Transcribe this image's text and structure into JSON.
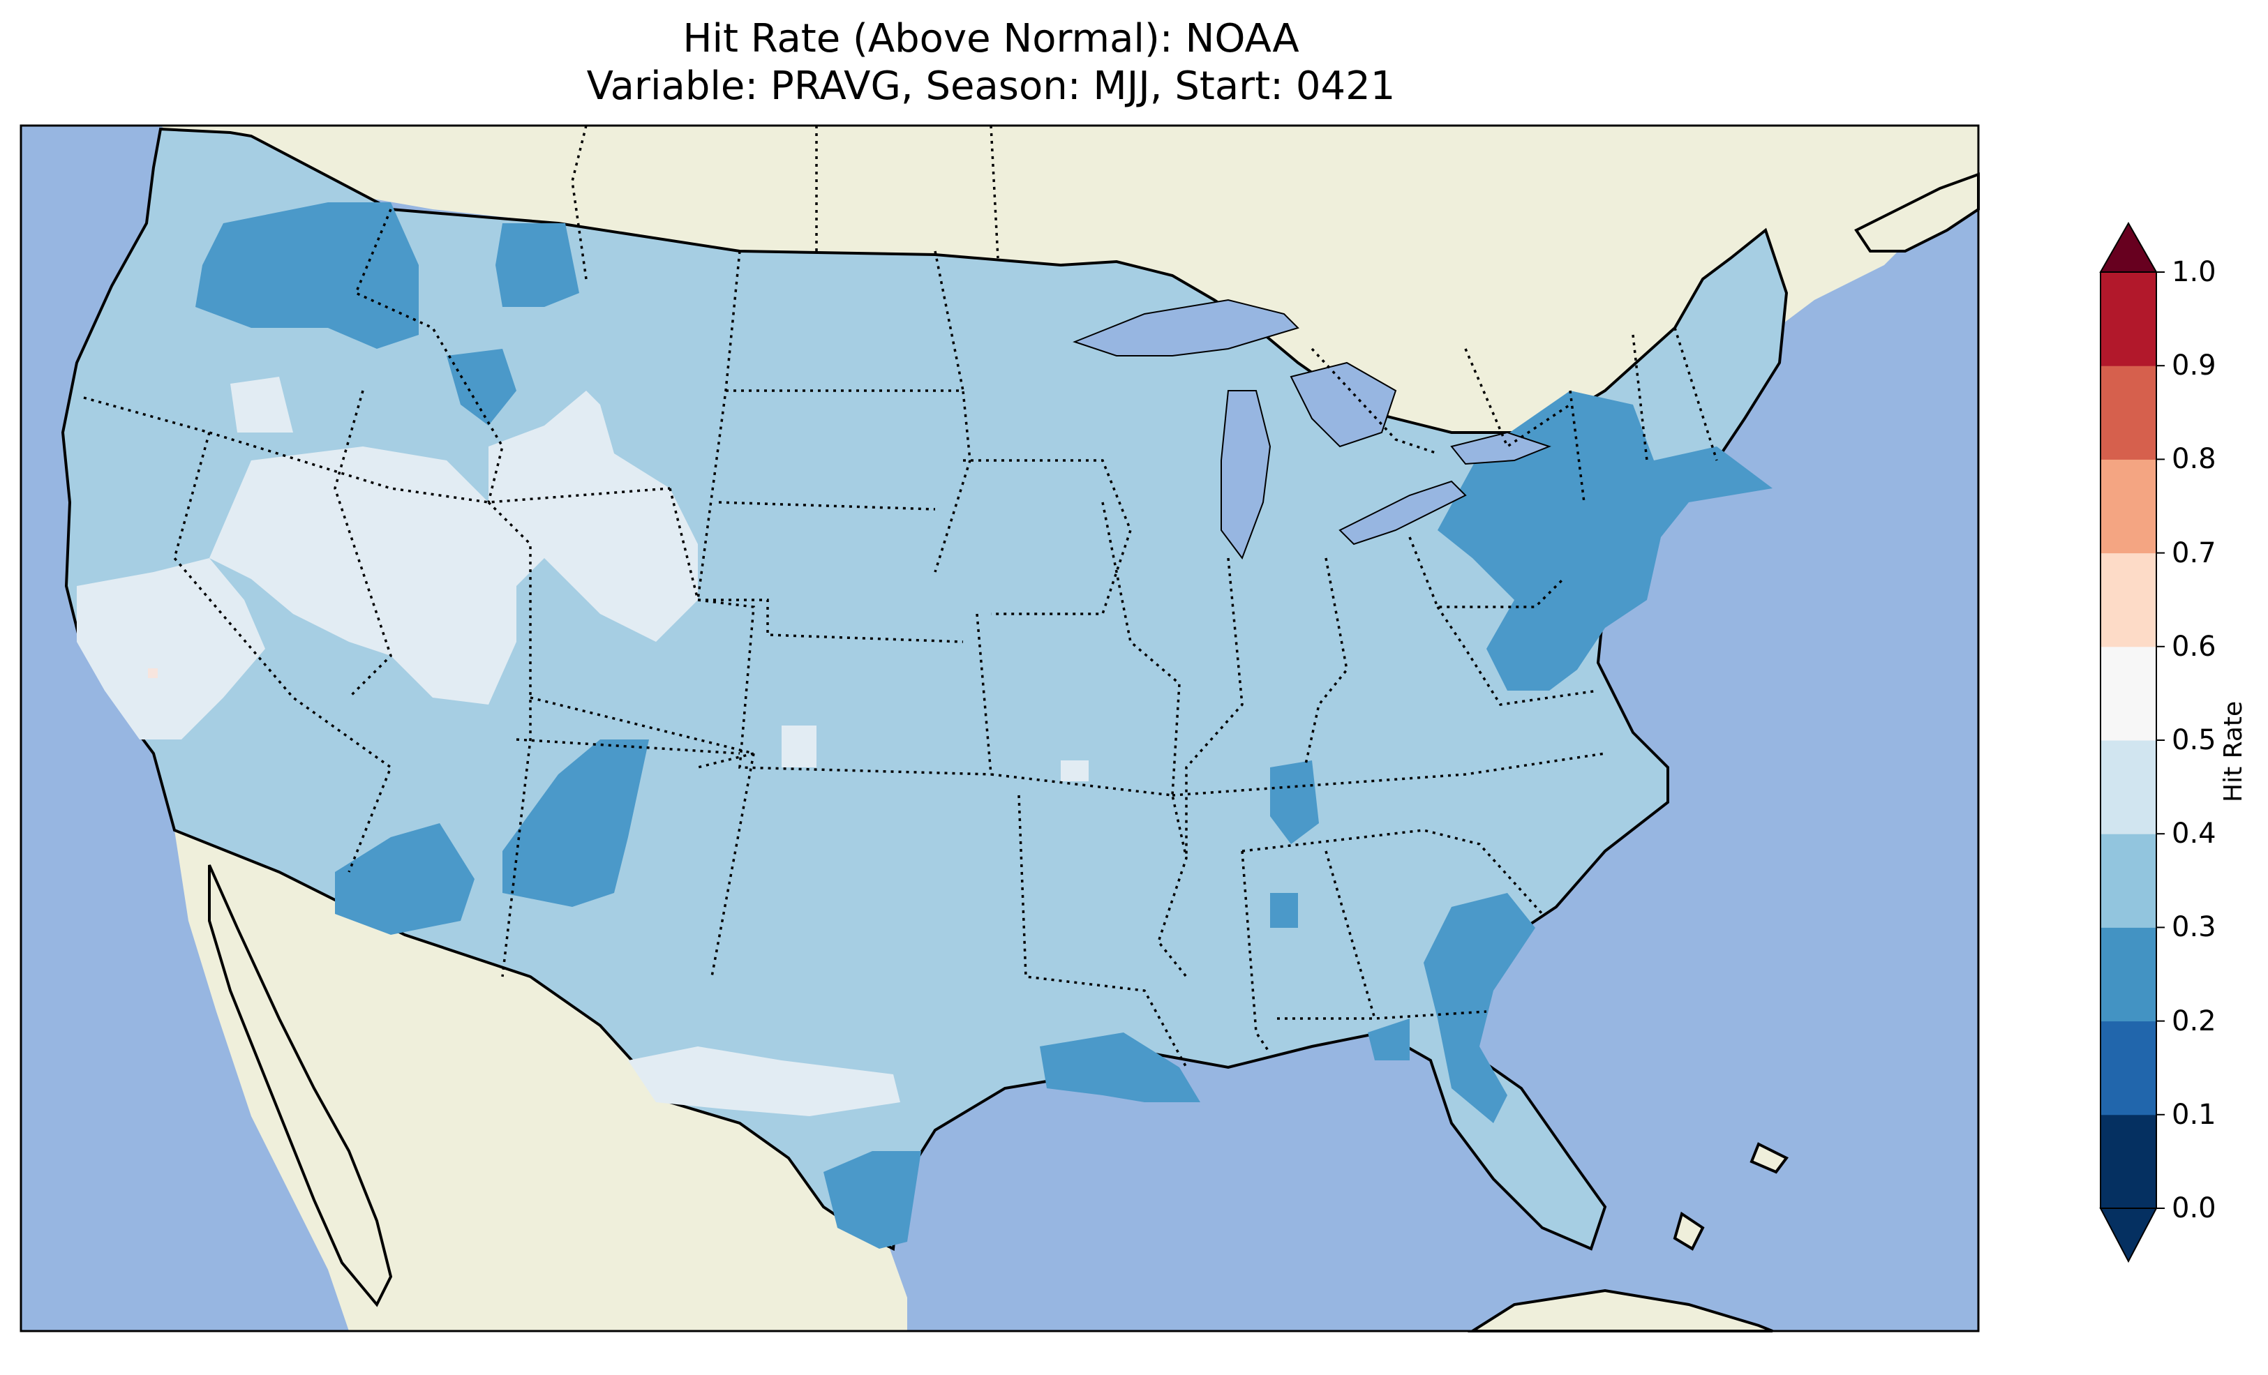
{
  "title": {
    "line1": "Hit Rate (Above Normal): NOAA",
    "line2": "Variable: PRAVG, Season: MJJ, Start: 0421"
  },
  "colorbar": {
    "label": "Hit Rate",
    "ticks": [
      "0.0",
      "0.1",
      "0.2",
      "0.3",
      "0.4",
      "0.5",
      "0.6",
      "0.7",
      "0.8",
      "0.9",
      "1.0"
    ],
    "colors": [
      "#053061",
      "#2166ac",
      "#4393c3",
      "#92c5de",
      "#d1e5f0",
      "#f7f7f7",
      "#fddbc7",
      "#f4a582",
      "#d6604d",
      "#b2182b",
      "#67001f"
    ],
    "extend": "both"
  },
  "map": {
    "region": "Contiguous United States",
    "ocean_color": "#97b6e1",
    "land_color": "#efefdb",
    "level_colors": {
      "0.2-0.3": "#4b99c9",
      "0.3-0.4": "#a6cee3",
      "0.4-0.5": "#e2ecf3",
      "0.5-0.6": "#f7e5de"
    },
    "dominant_level": "0.3-0.4"
  }
}
